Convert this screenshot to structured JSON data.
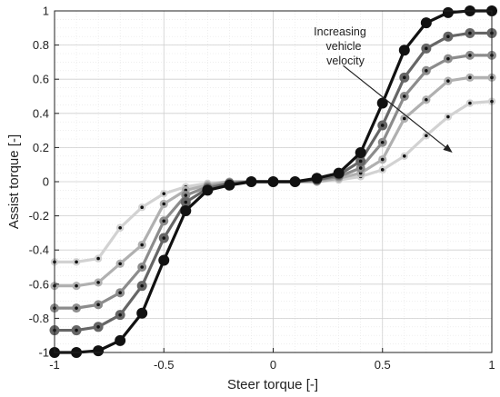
{
  "chart_data": {
    "type": "line",
    "xlabel": "Steer torque [-]",
    "ylabel": "Assist torque [-]",
    "xlim": [
      -1,
      1
    ],
    "ylim": [
      -1,
      1
    ],
    "grid": true,
    "xticks": [
      -1,
      -0.5,
      0,
      0.5,
      1
    ],
    "xtick_labels": [
      "-1",
      "-0.5",
      "0",
      "0.5",
      "1"
    ],
    "yticks": [
      -1,
      -0.8,
      -0.6,
      -0.4,
      -0.2,
      0,
      0.2,
      0.4,
      0.6,
      0.8,
      1
    ],
    "ytick_labels": [
      "-1",
      "-0.8",
      "-0.6",
      "-0.4",
      "-0.2",
      "0",
      "0.2",
      "0.4",
      "0.6",
      "0.8",
      "1"
    ],
    "annotation": {
      "lines": [
        "Increasing",
        "vehicle",
        "velocity"
      ],
      "arrow_from": [
        0.32,
        0.68
      ],
      "arrow_to": [
        0.82,
        0.17
      ]
    },
    "x": [
      -1,
      -0.9,
      -0.8,
      -0.7,
      -0.6,
      -0.5,
      -0.4,
      -0.3,
      -0.2,
      -0.1,
      0,
      0.1,
      0.2,
      0.3,
      0.4,
      0.5,
      0.6,
      0.7,
      0.8,
      0.9,
      1
    ],
    "series": [
      {
        "color": "#111111",
        "values": [
          -1.0,
          -1.0,
          -0.99,
          -0.93,
          -0.77,
          -0.46,
          -0.17,
          -0.05,
          -0.02,
          0.0,
          0.0,
          0.0,
          0.02,
          0.05,
          0.17,
          0.46,
          0.77,
          0.93,
          0.99,
          1.0,
          1.0
        ]
      },
      {
        "color": "#666666",
        "values": [
          -0.87,
          -0.87,
          -0.85,
          -0.78,
          -0.61,
          -0.33,
          -0.12,
          -0.04,
          -0.01,
          0.0,
          0.0,
          0.0,
          0.01,
          0.04,
          0.12,
          0.33,
          0.61,
          0.78,
          0.85,
          0.87,
          0.87
        ]
      },
      {
        "color": "#8c8c8c",
        "values": [
          -0.74,
          -0.74,
          -0.72,
          -0.65,
          -0.5,
          -0.23,
          -0.08,
          -0.03,
          -0.01,
          0.0,
          0.0,
          0.0,
          0.01,
          0.03,
          0.08,
          0.23,
          0.5,
          0.65,
          0.72,
          0.74,
          0.74
        ]
      },
      {
        "color": "#b0b0b0",
        "values": [
          -0.61,
          -0.61,
          -0.59,
          -0.48,
          -0.37,
          -0.13,
          -0.05,
          -0.02,
          0.0,
          0.0,
          0.0,
          0.0,
          0.0,
          0.02,
          0.05,
          0.13,
          0.37,
          0.48,
          0.59,
          0.61,
          0.61
        ]
      },
      {
        "color": "#d2d2d2",
        "values": [
          -0.47,
          -0.47,
          -0.45,
          -0.27,
          -0.15,
          -0.07,
          -0.03,
          -0.01,
          0.0,
          0.0,
          0.0,
          0.0,
          0.0,
          0.01,
          0.03,
          0.07,
          0.15,
          0.27,
          0.38,
          0.46,
          0.47
        ]
      }
    ]
  }
}
